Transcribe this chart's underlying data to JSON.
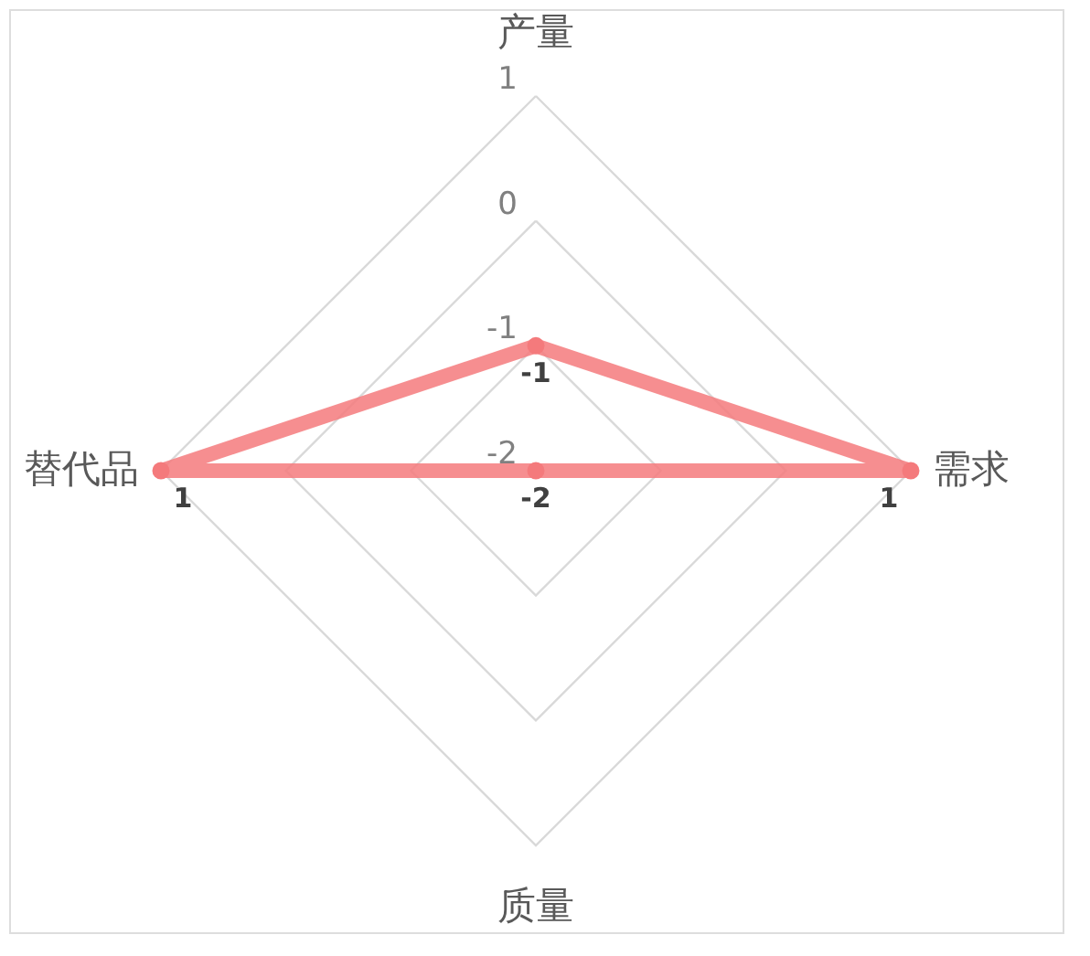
{
  "chart_data": {
    "type": "radar",
    "categories": [
      "产量",
      "需求",
      "质量",
      "替代品"
    ],
    "series": [
      {
        "color": "#f47a7c",
        "values": [
          -1,
          1,
          -2,
          1
        ]
      }
    ],
    "ylim": [
      -2,
      1
    ],
    "yticks": [
      -2,
      -1,
      0,
      1
    ],
    "data_labels": true,
    "marker": "circle",
    "grid": true
  }
}
